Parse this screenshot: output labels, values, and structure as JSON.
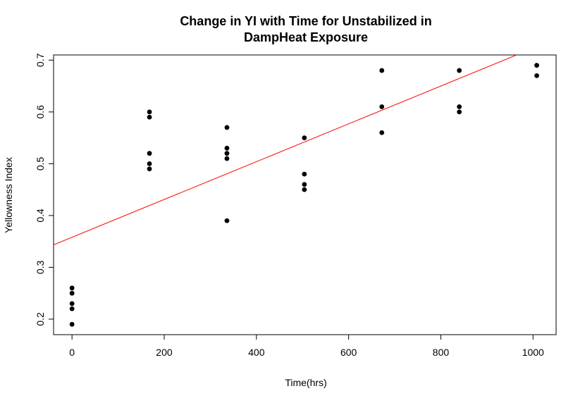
{
  "chart_data": {
    "type": "scatter",
    "title_line1": "Change in YI with Time for Unstabilized in",
    "title_line2": "DampHeat Exposure",
    "xlabel": "Time(hrs)",
    "ylabel": "Yellowness Index",
    "xlim": [
      -40,
      1050
    ],
    "ylim": [
      0.17,
      0.71
    ],
    "x_ticks": [
      0,
      200,
      400,
      600,
      800,
      1000
    ],
    "y_ticks": [
      0.2,
      0.3,
      0.4,
      0.5,
      0.6,
      0.7
    ],
    "grid": false,
    "points": [
      {
        "x": 0,
        "y": 0.26
      },
      {
        "x": 0,
        "y": 0.25
      },
      {
        "x": 0,
        "y": 0.23
      },
      {
        "x": 0,
        "y": 0.22
      },
      {
        "x": 0,
        "y": 0.19
      },
      {
        "x": 168,
        "y": 0.6
      },
      {
        "x": 168,
        "y": 0.59
      },
      {
        "x": 168,
        "y": 0.52
      },
      {
        "x": 168,
        "y": 0.5
      },
      {
        "x": 168,
        "y": 0.49
      },
      {
        "x": 336,
        "y": 0.57
      },
      {
        "x": 336,
        "y": 0.53
      },
      {
        "x": 336,
        "y": 0.52
      },
      {
        "x": 336,
        "y": 0.51
      },
      {
        "x": 336,
        "y": 0.39
      },
      {
        "x": 504,
        "y": 0.55
      },
      {
        "x": 504,
        "y": 0.48
      },
      {
        "x": 504,
        "y": 0.46
      },
      {
        "x": 504,
        "y": 0.45
      },
      {
        "x": 672,
        "y": 0.68
      },
      {
        "x": 672,
        "y": 0.61
      },
      {
        "x": 672,
        "y": 0.56
      },
      {
        "x": 840,
        "y": 0.68
      },
      {
        "x": 840,
        "y": 0.61
      },
      {
        "x": 840,
        "y": 0.6
      },
      {
        "x": 1008,
        "y": 0.69
      },
      {
        "x": 1008,
        "y": 0.67
      }
    ],
    "fit_line": {
      "intercept": 0.358,
      "slope": 0.000365
    },
    "colors": {
      "points": "#000000",
      "fit_line": "#ff0000",
      "axes": "#000000"
    }
  }
}
